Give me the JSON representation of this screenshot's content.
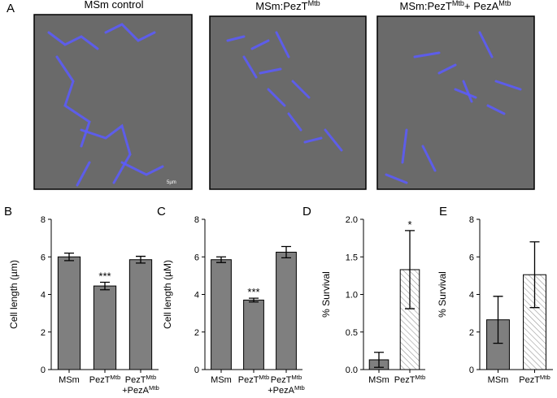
{
  "figure": {
    "panel_a": {
      "label": "A",
      "scale_label": "5µm",
      "images": [
        {
          "title": [
            {
              "text": "MSm control"
            }
          ]
        },
        {
          "title": [
            {
              "text": "MSm:PezT"
            },
            {
              "text": "Mtb",
              "sup": true
            }
          ]
        },
        {
          "title": [
            {
              "text": "MSm:PezT"
            },
            {
              "text": "Mtb",
              "sup": true
            },
            {
              "text": "+ PezA"
            },
            {
              "text": "Mtb",
              "sup": true
            }
          ]
        }
      ]
    }
  },
  "chart_data": [
    {
      "type": "bar",
      "label": "B",
      "y_label": "Cell length (µm)",
      "color": "#7f7f7f",
      "categories": [
        [
          [
            {
              "text": "MSm"
            }
          ]
        ],
        [
          [
            {
              "text": "PezT"
            },
            {
              "text": "Mtb",
              "sup": true
            }
          ]
        ],
        [
          [
            {
              "text": "PezT"
            },
            {
              "text": "Mtb",
              "sup": true
            }
          ],
          [
            {
              "text": "+PezA"
            },
            {
              "text": "Mtb",
              "sup": true
            }
          ]
        ]
      ],
      "values": [
        6.0,
        4.45,
        5.85
      ],
      "errors": [
        0.2,
        0.2,
        0.18
      ],
      "bar_styles": [
        "solid",
        "solid",
        "solid"
      ],
      "significance": [
        null,
        "***",
        null
      ],
      "ylim": [
        0,
        8
      ],
      "yticks": [
        0,
        2,
        4,
        6,
        8
      ]
    },
    {
      "type": "bar",
      "label": "C",
      "y_label": "Cell length (µM)",
      "color": "#7f7f7f",
      "categories": [
        [
          [
            {
              "text": "MSm"
            }
          ]
        ],
        [
          [
            {
              "text": "PezT"
            },
            {
              "text": "Mtb",
              "sup": true
            }
          ]
        ],
        [
          [
            {
              "text": "PezT"
            },
            {
              "text": "Mtb",
              "sup": true
            }
          ],
          [
            {
              "text": "+PezA"
            },
            {
              "text": "Mtb",
              "sup": true
            }
          ]
        ]
      ],
      "values": [
        5.85,
        3.7,
        6.25
      ],
      "errors": [
        0.15,
        0.1,
        0.3
      ],
      "bar_styles": [
        "solid",
        "solid",
        "solid"
      ],
      "significance": [
        null,
        "***",
        null
      ],
      "ylim": [
        0,
        8
      ],
      "yticks": [
        0,
        2,
        4,
        6,
        8
      ]
    },
    {
      "type": "bar",
      "label": "D",
      "y_label": "% Survival",
      "color": "#7f7f7f",
      "categories": [
        [
          [
            {
              "text": "MSm"
            }
          ]
        ],
        [
          [
            {
              "text": "PezT"
            },
            {
              "text": "Mtb",
              "sup": true
            }
          ]
        ]
      ],
      "values": [
        0.13,
        1.33
      ],
      "errors": [
        0.1,
        0.52
      ],
      "bar_styles": [
        "solid",
        "hatched"
      ],
      "significance": [
        null,
        "*"
      ],
      "ylim": [
        0,
        2
      ],
      "yticks": [
        {
          "value": 0,
          "label": "0.0"
        },
        {
          "value": 0.5,
          "label": "0.5"
        },
        {
          "value": 1,
          "label": "1.0"
        },
        {
          "value": 1.5,
          "label": "1.5"
        },
        {
          "value": 2,
          "label": "2.0"
        }
      ]
    },
    {
      "type": "bar",
      "label": "E",
      "y_label": "% Survival",
      "color": "#7f7f7f",
      "categories": [
        [
          [
            {
              "text": "MSm"
            }
          ]
        ],
        [
          [
            {
              "text": "PezT"
            },
            {
              "text": "Mtb",
              "sup": true
            }
          ]
        ]
      ],
      "values": [
        2.65,
        5.05
      ],
      "errors": [
        1.25,
        1.75
      ],
      "bar_styles": [
        "solid",
        "hatched"
      ],
      "significance": [
        null,
        null
      ],
      "ylim": [
        0,
        8
      ],
      "yticks": [
        0,
        2,
        4,
        6,
        8
      ]
    }
  ]
}
